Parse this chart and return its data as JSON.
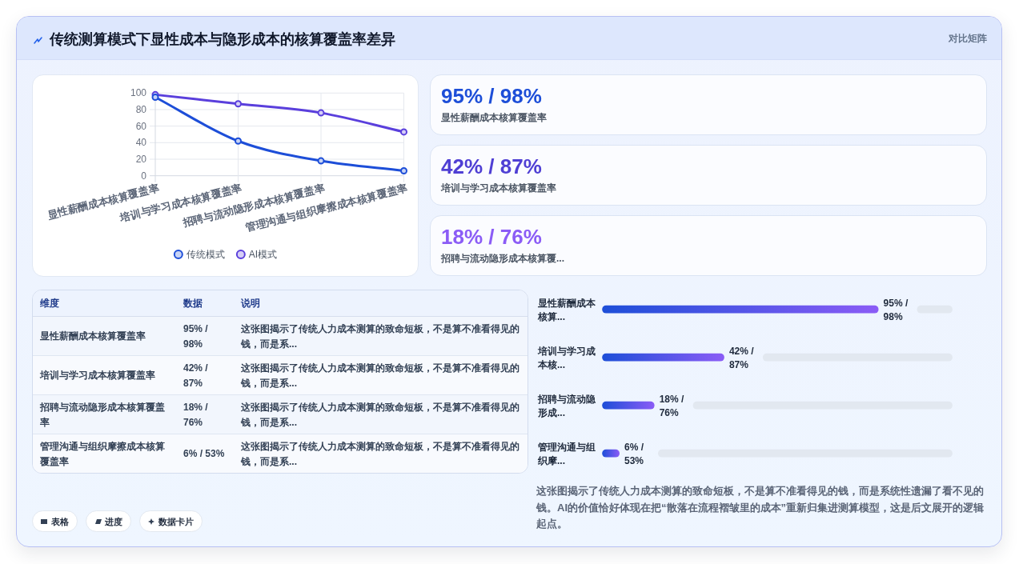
{
  "chart_data": [
    {
      "type": "other",
      "title": "传统测算模式下显性成本与隐形成本的核算覆盖率差异",
      "annotations": [
        "对比矩阵"
      ]
    },
    {
      "type": "line",
      "categories": [
        "显性薪酬成本核算覆盖率",
        "培训与学习成本核算覆盖率",
        "招聘与流动隐形成本核算覆盖率",
        "管理沟通与组织摩擦成本核算覆盖率"
      ],
      "series": [
        {
          "name": "传统模式",
          "color": "#1d4ed8",
          "values": [
            95,
            42,
            18,
            6
          ]
        },
        {
          "name": "AI模式",
          "color": "#5a3fdc",
          "values": [
            98,
            87,
            76,
            53
          ]
        }
      ],
      "ylim": [
        0,
        100
      ],
      "yticks": [
        0,
        20,
        40,
        60,
        80,
        100
      ],
      "grid": true,
      "legend": "bottom",
      "marker": "circle",
      "line_style": "solid"
    },
    {
      "type": "other",
      "title": "95% / 98%",
      "subtitle": "显性薪酬成本核算覆盖率"
    },
    {
      "type": "other",
      "title": "42% / 87%",
      "subtitle": "培训与学习成本核算覆盖率"
    },
    {
      "type": "other",
      "title": "18% / 76%",
      "subtitle": "招聘与流动隐形成本核算覆..."
    },
    {
      "type": "other",
      "ylabel": "维度",
      "categories": [
        "数据",
        "说明"
      ],
      "y_categories": [
        "显性薪酬成本核算覆盖率",
        "培训与学习成本核算覆盖率",
        "招聘与流动隐形成本核算覆盖率",
        "管理沟通与组织摩擦成本核算覆盖率"
      ],
      "cell_labels": [
        [
          "95% / 98%",
          "这张图揭示了传统人力成本测算的致命短板，不是算不准看得见的钱，而是系..."
        ],
        [
          "42% / 87%",
          "这张图揭示了传统人力成本测算的致命短板，不是算不准看得见的钱，而是系..."
        ],
        [
          "18% / 76%",
          "这张图揭示了传统人力成本测算的致命短板，不是算不准看得见的钱，而是系..."
        ],
        [
          "6% / 53%",
          "这张图揭示了传统人力成本测算的致命短板，不是算不准看得见的钱，而是系..."
        ]
      ]
    },
    {
      "type": "bar",
      "orientation": "horizontal",
      "categories": [
        "显性薪酬成本核算...",
        "培训与学习成本核...",
        "招聘与流动隐形成...",
        "管理沟通与组织摩..."
      ],
      "values": [
        95,
        42,
        18,
        6
      ],
      "value_labels": [
        "95% / 98%",
        "42% / 87%",
        "18% / 76%",
        "6% / 53%"
      ],
      "color": "#1d4ed8",
      "tick_labels": "y",
      "annotations": [
        "这张图揭示了传统人力成本测算的致命短板，不是算不准看得见的钱，而是系统性遗漏了看不见的钱。AI的价值恰好体现在把“散落在流程褶皱里的成本”重新归集进测算模型，这是后文展开的逻辑起点。"
      ]
    },
    {
      "type": "other",
      "annotations": [
        "表格",
        "进度",
        "数据卡片"
      ]
    }
  ]
}
